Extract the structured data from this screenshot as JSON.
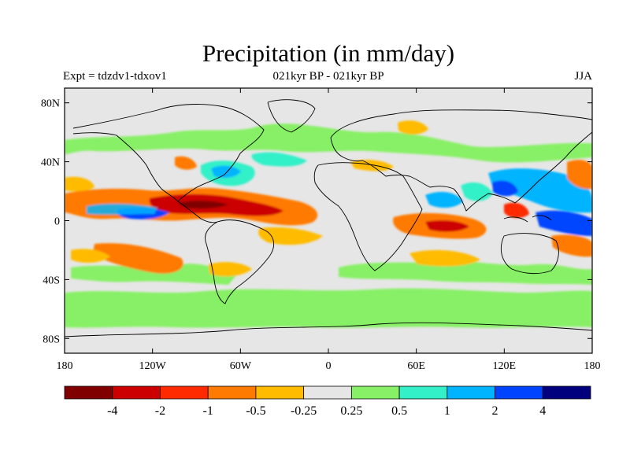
{
  "title": "Precipitation (in mm/day)",
  "subtitle_left": "Expt = tdzdv1-tdxov1",
  "subtitle_center": "021kyr BP - 021kyr BP",
  "subtitle_right": "JJA",
  "lat_ticks": [
    {
      "label": "80N",
      "lat": 80
    },
    {
      "label": "40N",
      "lat": 40
    },
    {
      "label": "0",
      "lat": 0
    },
    {
      "label": "40S",
      "lat": -40
    },
    {
      "label": "80S",
      "lat": -80
    }
  ],
  "lon_ticks": [
    {
      "label": "180",
      "lon": -180
    },
    {
      "label": "120W",
      "lon": -120
    },
    {
      "label": "60W",
      "lon": -60
    },
    {
      "label": "0",
      "lon": 0
    },
    {
      "label": "60E",
      "lon": 60
    },
    {
      "label": "120E",
      "lon": 120
    },
    {
      "label": "180",
      "lon": 180
    }
  ],
  "colorbar": {
    "colors": [
      "#800000",
      "#cc0000",
      "#ff2a00",
      "#ff7a00",
      "#ffbb00",
      "#e6e6e6",
      "#88f066",
      "#33f0c8",
      "#00b4ff",
      "#0044ff",
      "#00007f"
    ],
    "labels": [
      "-4",
      "-2",
      "-1",
      "-0.5",
      "-0.25",
      "0.25",
      "0.5",
      "1",
      "2",
      "4"
    ]
  },
  "colors": {
    "ocean_background": "#e6e6e6",
    "coastline": "#000000"
  }
}
